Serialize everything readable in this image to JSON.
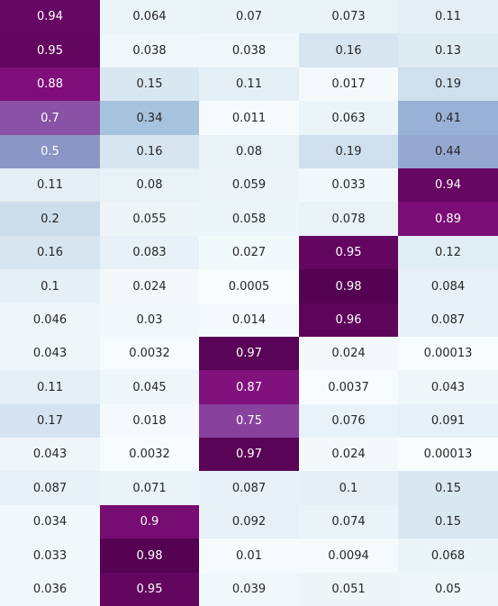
{
  "chart_data": {
    "type": "heatmap",
    "rows": 18,
    "cols": 5,
    "colormap": "BuPu",
    "value_range": [
      0,
      1
    ],
    "values": [
      [
        0.94,
        0.064,
        0.07,
        0.073,
        0.11
      ],
      [
        0.95,
        0.038,
        0.038,
        0.16,
        0.13
      ],
      [
        0.88,
        0.15,
        0.11,
        0.017,
        0.19
      ],
      [
        0.7,
        0.34,
        0.011,
        0.063,
        0.41
      ],
      [
        0.5,
        0.16,
        0.08,
        0.19,
        0.44
      ],
      [
        0.11,
        0.08,
        0.059,
        0.033,
        0.94
      ],
      [
        0.2,
        0.055,
        0.058,
        0.078,
        0.89
      ],
      [
        0.16,
        0.083,
        0.027,
        0.95,
        0.12
      ],
      [
        0.1,
        0.024,
        0.0005,
        0.98,
        0.084
      ],
      [
        0.046,
        0.03,
        0.014,
        0.96,
        0.087
      ],
      [
        0.043,
        0.0032,
        0.97,
        0.024,
        0.00013
      ],
      [
        0.11,
        0.045,
        0.87,
        0.0037,
        0.043
      ],
      [
        0.17,
        0.018,
        0.75,
        0.076,
        0.091
      ],
      [
        0.043,
        0.0032,
        0.97,
        0.024,
        0.00013
      ],
      [
        0.087,
        0.071,
        0.087,
        0.1,
        0.15
      ],
      [
        0.034,
        0.9,
        0.092,
        0.074,
        0.15
      ],
      [
        0.033,
        0.98,
        0.01,
        0.0094,
        0.068
      ],
      [
        0.036,
        0.95,
        0.039,
        0.051,
        0.05
      ]
    ],
    "labels": [
      [
        "0.94",
        "0.064",
        "0.07",
        "0.073",
        "0.11"
      ],
      [
        "0.95",
        "0.038",
        "0.038",
        "0.16",
        "0.13"
      ],
      [
        "0.88",
        "0.15",
        "0.11",
        "0.017",
        "0.19"
      ],
      [
        "0.7",
        "0.34",
        "0.011",
        "0.063",
        "0.41"
      ],
      [
        "0.5",
        "0.16",
        "0.08",
        "0.19",
        "0.44"
      ],
      [
        "0.11",
        "0.08",
        "0.059",
        "0.033",
        "0.94"
      ],
      [
        "0.2",
        "0.055",
        "0.058",
        "0.078",
        "0.89"
      ],
      [
        "0.16",
        "0.083",
        "0.027",
        "0.95",
        "0.12"
      ],
      [
        "0.1",
        "0.024",
        "0.0005",
        "0.98",
        "0.084"
      ],
      [
        "0.046",
        "0.03",
        "0.014",
        "0.96",
        "0.087"
      ],
      [
        "0.043",
        "0.0032",
        "0.97",
        "0.024",
        "0.00013"
      ],
      [
        "0.11",
        "0.045",
        "0.87",
        "0.0037",
        "0.043"
      ],
      [
        "0.17",
        "0.018",
        "0.75",
        "0.076",
        "0.091"
      ],
      [
        "0.043",
        "0.0032",
        "0.97",
        "0.024",
        "0.00013"
      ],
      [
        "0.087",
        "0.071",
        "0.087",
        "0.1",
        "0.15"
      ],
      [
        "0.034",
        "0.9",
        "0.092",
        "0.074",
        "0.15"
      ],
      [
        "0.033",
        "0.98",
        "0.01",
        "0.0094",
        "0.068"
      ],
      [
        "0.036",
        "0.95",
        "0.039",
        "0.051",
        "0.05"
      ]
    ],
    "title": "",
    "xlabel": "",
    "ylabel": "",
    "grid": false,
    "legend": "none"
  }
}
